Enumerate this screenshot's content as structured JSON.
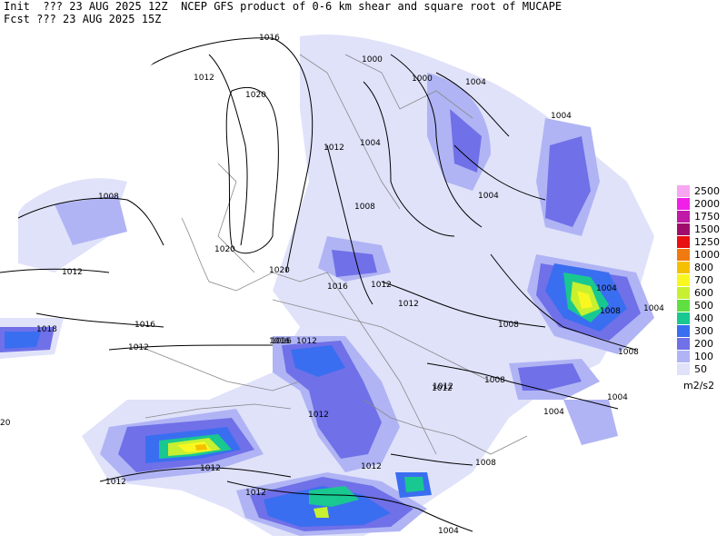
{
  "header": {
    "line1": "Init  ??? 23 AUG 2025 12Z  NCEP GFS product of 0-6 km shear and square root of MUCAPE",
    "line2": "Fcst ??? 23 AUG 2025 15Z"
  },
  "legend": {
    "units": "m2/s2",
    "items": [
      {
        "label": "2500",
        "color": "#f7a6f2"
      },
      {
        "label": "2000",
        "color": "#f020e8"
      },
      {
        "label": "1750",
        "color": "#c01aa8"
      },
      {
        "label": "1500",
        "color": "#a00c6c"
      },
      {
        "label": "1250",
        "color": "#e81010"
      },
      {
        "label": "1000",
        "color": "#f07a10"
      },
      {
        "label": "800",
        "color": "#f5c000"
      },
      {
        "label": "700",
        "color": "#f8f820"
      },
      {
        "label": "600",
        "color": "#c6f030"
      },
      {
        "label": "500",
        "color": "#60e040"
      },
      {
        "label": "400",
        "color": "#18c890"
      },
      {
        "label": "300",
        "color": "#3a6ef0"
      },
      {
        "label": "200",
        "color": "#7070e8"
      },
      {
        "label": "100",
        "color": "#b0b4f4"
      },
      {
        "label": "50",
        "color": "#e0e2fa"
      }
    ]
  },
  "isobar_labels": [
    "1016",
    "1012",
    "1020",
    "1008",
    "1012",
    "1020",
    "1020",
    "1016",
    "1012",
    "1008",
    "1004",
    "1000",
    "1004",
    "1000",
    "1004",
    "1012",
    "1008",
    "1004",
    "1016",
    "1012",
    "1012",
    "1008",
    "1004",
    "1004",
    "1008",
    "1004",
    "1012",
    "1016",
    "1012",
    "1012",
    "1008",
    "1004",
    "1012",
    "1012",
    "1012",
    "1012",
    "1008",
    "1004",
    "1018",
    "1016",
    "1012",
    "20"
  ]
}
